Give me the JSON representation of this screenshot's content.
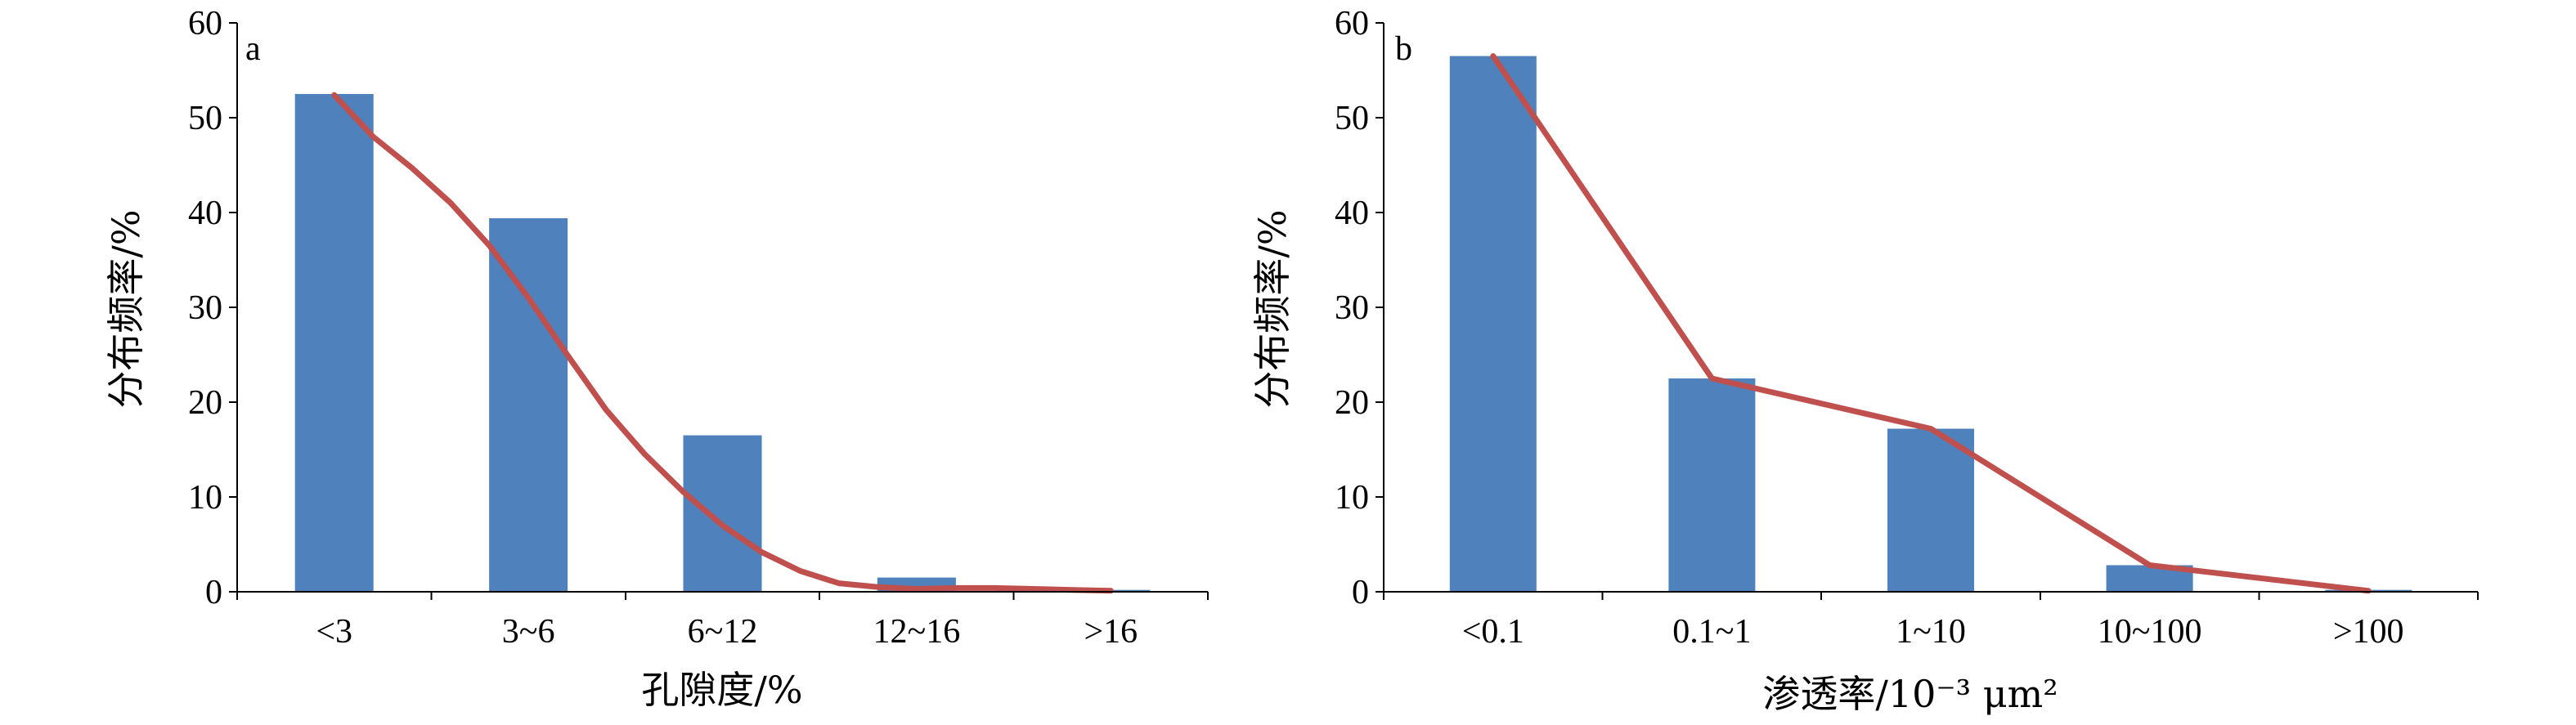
{
  "chart_data": [
    {
      "type": "bar",
      "panel_label": "a",
      "categories": [
        "<3",
        "3~6",
        "6~12",
        "12~16",
        ">16"
      ],
      "values": [
        52.5,
        39.4,
        16.5,
        1.5,
        0.2
      ],
      "line": {
        "x": [
          0,
          0.2,
          0.4,
          0.6,
          0.8,
          1,
          1.2,
          1.4,
          1.6,
          1.8,
          2,
          2.2,
          2.4,
          2.6,
          2.8,
          3,
          3.2,
          3.4,
          3.6,
          3.8,
          4
        ],
        "y": [
          52.4,
          48,
          44.7,
          41,
          36.5,
          31,
          25,
          19.2,
          14.5,
          10.5,
          7,
          4.2,
          2.2,
          0.9,
          0.5,
          0.3,
          0.4,
          0.4,
          0.3,
          0.2,
          0.1
        ]
      },
      "ylabel": "分布频率/%",
      "xlabel": "孔隙度/%",
      "ylim": [
        0,
        60
      ],
      "yticks": [
        "0",
        "10",
        "20",
        "30",
        "40",
        "50",
        "60"
      ],
      "grid": false,
      "colors": {
        "bars": "#4f81bd",
        "line": "#c0504d"
      }
    },
    {
      "type": "bar",
      "panel_label": "b",
      "categories": [
        "<0.1",
        "0.1~1",
        "1~10",
        "10~100",
        ">100"
      ],
      "values": [
        56.5,
        22.5,
        17.2,
        2.8,
        0.2
      ],
      "line": {
        "x": [
          0,
          1,
          2,
          3,
          4
        ],
        "y": [
          56.5,
          22.5,
          17.2,
          2.8,
          0.1
        ]
      },
      "ylabel": "分布频率/%",
      "xlabel": "渗透率/10⁻³ μm²",
      "ylim": [
        0,
        60
      ],
      "yticks": [
        "0",
        "10",
        "20",
        "30",
        "40",
        "50",
        "60"
      ],
      "grid": false,
      "colors": {
        "bars": "#4f81bd",
        "line": "#c0504d"
      }
    }
  ]
}
